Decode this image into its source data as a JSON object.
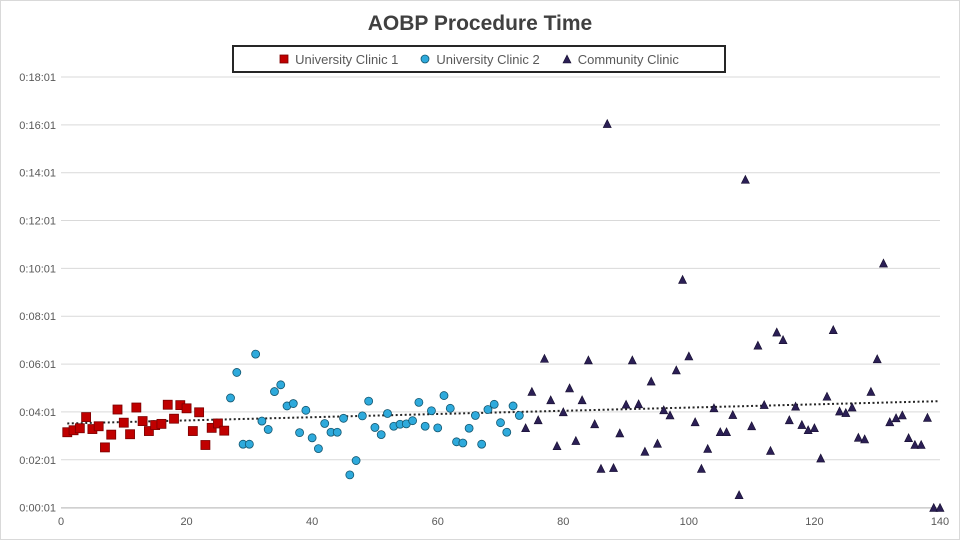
{
  "chart_data": {
    "type": "scatter",
    "title": "AOBP Procedure Time",
    "xlabel": "",
    "ylabel": "",
    "xlim": [
      0,
      140
    ],
    "ylim": [
      0,
      1081
    ],
    "x_ticks": [
      0,
      20,
      40,
      60,
      80,
      100,
      120,
      140
    ],
    "y_ticks": [
      {
        "value": 1,
        "label": "0:00:01"
      },
      {
        "value": 121,
        "label": "0:02:01"
      },
      {
        "value": 241,
        "label": "0:04:01"
      },
      {
        "value": 361,
        "label": "0:06:01"
      },
      {
        "value": 481,
        "label": "0:08:01"
      },
      {
        "value": 601,
        "label": "0:10:01"
      },
      {
        "value": 721,
        "label": "0:12:01"
      },
      {
        "value": 841,
        "label": "0:14:01"
      },
      {
        "value": 961,
        "label": "0:16:01"
      },
      {
        "value": 1081,
        "label": "0:18:01"
      }
    ],
    "grid": "horizontal",
    "legend_position": "top",
    "trendline": {
      "style": "dotted",
      "color": "#262626",
      "start": [
        1,
        212
      ],
      "end": [
        140,
        268
      ]
    },
    "series": [
      {
        "name": "University Clinic 1",
        "marker": "square",
        "color": "#c00000",
        "x": [
          1,
          2,
          3,
          4,
          5,
          6,
          7,
          8,
          9,
          10,
          11,
          12,
          13,
          14,
          15,
          16,
          17,
          18,
          19,
          20,
          21,
          22,
          23,
          24,
          25,
          26
        ],
        "y": [
          190,
          195,
          200,
          228,
          198,
          205,
          152,
          184,
          247,
          214,
          185,
          252,
          218,
          193,
          208,
          211,
          259,
          224,
          258,
          250,
          193,
          240,
          158,
          201,
          212,
          194
        ]
      },
      {
        "name": "University Clinic 2",
        "marker": "circle",
        "color": "#2eaadc",
        "x": [
          27,
          28,
          29,
          30,
          31,
          32,
          33,
          34,
          35,
          36,
          37,
          38,
          39,
          40,
          41,
          42,
          43,
          44,
          45,
          46,
          47,
          48,
          49,
          50,
          51,
          52,
          53,
          54,
          55,
          56,
          57,
          58,
          59,
          60,
          61,
          62,
          63,
          64,
          65,
          66,
          67,
          68,
          69,
          70,
          71,
          72,
          73
        ],
        "y": [
          276,
          340,
          160,
          160,
          386,
          218,
          197,
          292,
          309,
          256,
          262,
          189,
          245,
          176,
          149,
          212,
          190,
          190,
          225,
          83,
          119,
          231,
          268,
          202,
          184,
          237,
          205,
          210,
          211,
          219,
          265,
          205,
          244,
          201,
          282,
          250,
          166,
          163,
          200,
          232,
          160,
          247,
          260,
          214,
          190,
          256,
          232
        ]
      },
      {
        "name": "Community Clinic",
        "marker": "triangle",
        "color": "#2b1f55",
        "x": [
          74,
          75,
          76,
          77,
          78,
          79,
          80,
          81,
          82,
          83,
          84,
          85,
          86,
          87,
          88,
          89,
          90,
          91,
          92,
          93,
          94,
          95,
          96,
          97,
          98,
          99,
          100,
          101,
          102,
          103,
          104,
          105,
          106,
          107,
          108,
          109,
          110,
          111,
          112,
          113,
          114,
          115,
          116,
          117,
          118,
          119,
          120,
          121,
          122,
          123,
          124,
          125,
          126,
          127,
          128,
          129,
          130,
          131,
          132,
          133,
          134,
          135,
          136,
          137,
          138,
          139,
          140
        ],
        "y": [
          200,
          291,
          220,
          374,
          270,
          155,
          240,
          300,
          168,
          270,
          370,
          210,
          98,
          963,
          100,
          187,
          259,
          370,
          260,
          141,
          317,
          161,
          245,
          232,
          345,
          572,
          380,
          215,
          98,
          148,
          250,
          190,
          190,
          233,
          32,
          823,
          205,
          407,
          258,
          143,
          440,
          421,
          220,
          254,
          208,
          195,
          200,
          124,
          279,
          446,
          242,
          238,
          252,
          176,
          172,
          291,
          373,
          613,
          215,
          225,
          232,
          175,
          158,
          158,
          226,
          0,
          0
        ]
      }
    ]
  }
}
